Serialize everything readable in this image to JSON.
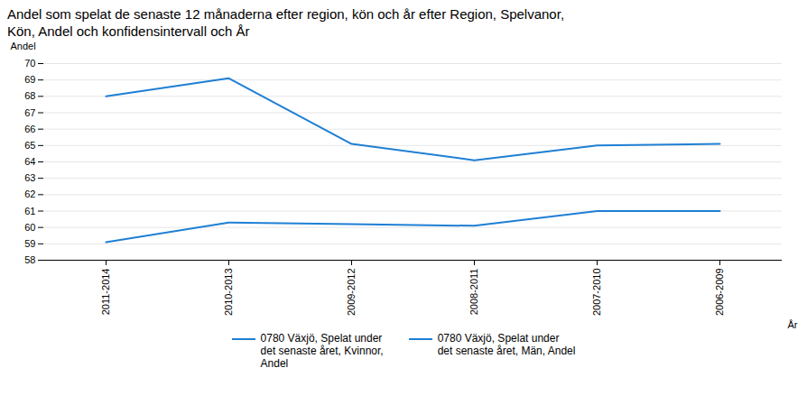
{
  "chart_data": {
    "type": "line",
    "title": "Andel som spelat de senaste 12 månaderna efter region, kön och år efter Region, Spelvanor,",
    "subtitle": "Kön, Andel och konfidensintervall och År",
    "xlabel": "År",
    "ylabel": "Andel",
    "categories": [
      "2011-2014",
      "2010-2013",
      "2009-2012",
      "2008-2011",
      "2007-2010",
      "2006-2009"
    ],
    "series": [
      {
        "name": "0780 Växjö, Spelat under\ndet senaste året, Kvinnor,\nAndel",
        "color": "#1F7FD4",
        "values": [
          59.1,
          60.3,
          60.2,
          60.1,
          61.0,
          61.0
        ]
      },
      {
        "name": "0780 Växjö, Spelat under\ndet senaste året, Män, Andel",
        "color": "#1F7FD4",
        "values": [
          68.0,
          69.1,
          65.1,
          64.1,
          65.0,
          65.1
        ]
      }
    ],
    "ylim": [
      58,
      70
    ],
    "yticks": [
      58,
      59,
      60,
      61,
      62,
      63,
      64,
      65,
      66,
      67,
      68,
      69,
      70
    ],
    "grid": true,
    "legend": "bottom"
  }
}
